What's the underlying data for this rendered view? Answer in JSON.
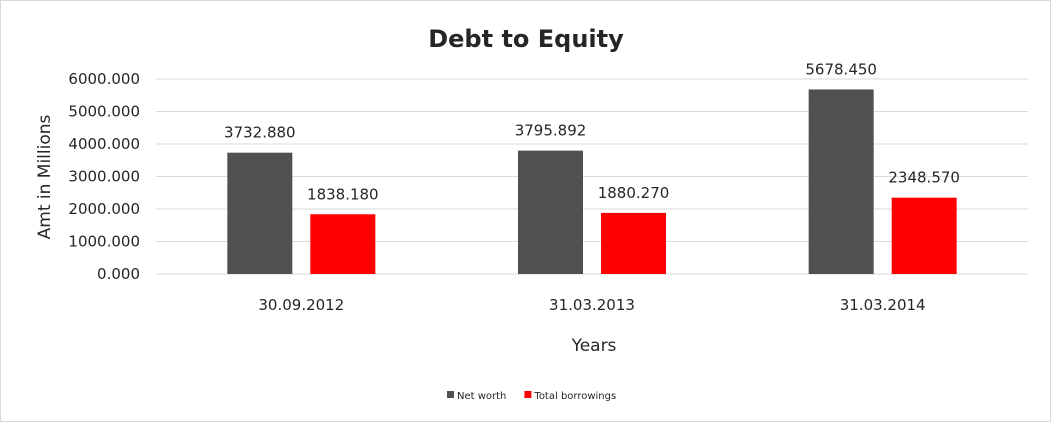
{
  "chart_data": {
    "type": "bar",
    "title": "Debt to Equity",
    "xlabel": "Years",
    "ylabel": "Amt in Millions",
    "categories": [
      "30.09.2012",
      "31.03.2013",
      "31.03.2014"
    ],
    "series": [
      {
        "name": "Net worth",
        "values": [
          3732.88,
          3795.892,
          5678.45
        ],
        "labels": [
          "3732.880",
          "3795.892",
          "5678.450"
        ],
        "color": "#505050"
      },
      {
        "name": "Total borrowings",
        "values": [
          1838.18,
          1880.27,
          2348.57
        ],
        "labels": [
          "1838.180",
          "1880.270",
          "2348.570"
        ],
        "color": "#ff0000"
      }
    ],
    "ylim": [
      0,
      6000
    ],
    "yticks": [
      0,
      1000,
      2000,
      3000,
      4000,
      5000,
      6000
    ],
    "ytick_labels": [
      "0.000",
      "1000.000",
      "2000.000",
      "3000.000",
      "4000.000",
      "5000.000",
      "6000.000"
    ],
    "grid": true,
    "legend_position": "bottom",
    "data_labels": true
  }
}
